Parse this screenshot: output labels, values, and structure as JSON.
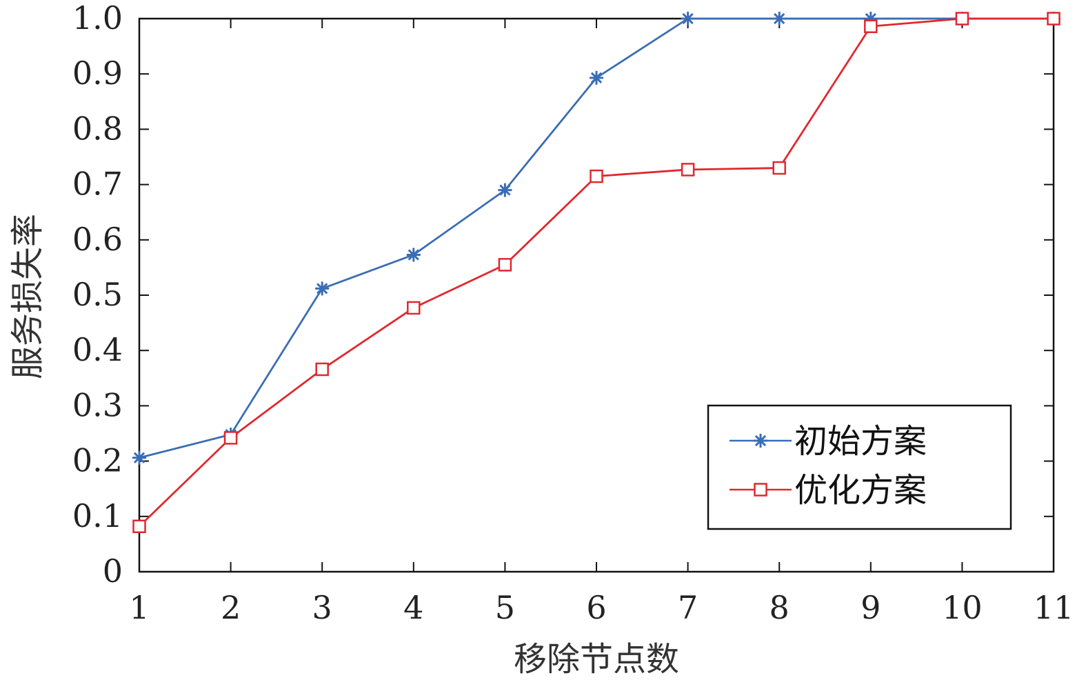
{
  "chart_data": {
    "type": "line",
    "xlabel": "移除节点数",
    "ylabel": "服务损失率",
    "x": [
      1,
      2,
      3,
      4,
      5,
      6,
      7,
      8,
      9,
      10,
      11
    ],
    "xticks": [
      "1",
      "2",
      "3",
      "4",
      "5",
      "6",
      "7",
      "8",
      "9",
      "10",
      "11"
    ],
    "yticks": [
      "0",
      "0.1",
      "0.2",
      "0.3",
      "0.4",
      "0.5",
      "0.6",
      "0.7",
      "0.8",
      "0.9",
      "1.0"
    ],
    "xlim": [
      1,
      11
    ],
    "ylim": [
      0,
      1
    ],
    "grid": false,
    "legend_position": "lower-right",
    "series": [
      {
        "name": "初始方案",
        "color": "#3a6db5",
        "marker": "asterisk",
        "values": [
          0.206,
          0.248,
          0.512,
          0.573,
          0.69,
          0.893,
          1.0,
          1.0,
          1.0,
          1.0,
          1.0
        ]
      },
      {
        "name": "优化方案",
        "color": "#e0282e",
        "marker": "square",
        "values": [
          0.082,
          0.242,
          0.366,
          0.477,
          0.555,
          0.715,
          0.727,
          0.73,
          0.986,
          1.0,
          1.0
        ]
      }
    ]
  }
}
